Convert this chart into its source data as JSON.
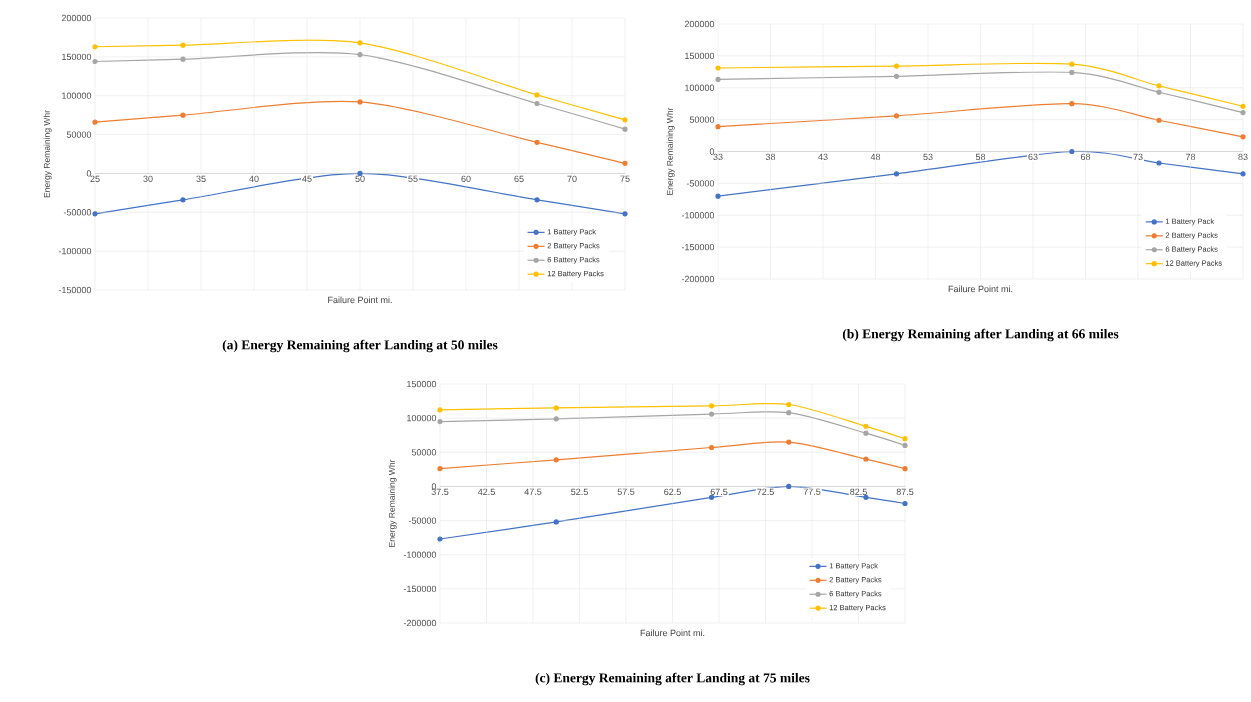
{
  "chart_data": [
    {
      "type": "line",
      "title": "(a) Energy Remaining after Landing at 50 miles",
      "xlabel": "Failure Point mi.",
      "ylabel": "Energy Remaining Whr",
      "xlim": [
        25,
        75
      ],
      "ylim": [
        -150000,
        200000
      ],
      "xticks": [
        25,
        30,
        35,
        40,
        45,
        50,
        55,
        60,
        65,
        70,
        75
      ],
      "yticks": [
        -150000,
        -100000,
        -50000,
        0,
        50000,
        100000,
        150000,
        200000
      ],
      "grid": true,
      "legend": "bottom right",
      "marker": "circle",
      "line_style": "solid",
      "x": [
        25,
        33.3,
        50,
        66.7,
        75
      ],
      "series": [
        {
          "name": "1 Battery Pack",
          "color": "#4472c4",
          "values": [
            -52000,
            -34000,
            0,
            -34000,
            -52000
          ]
        },
        {
          "name": "2 Battery Packs",
          "color": "#ed7d31",
          "values": [
            66000,
            75000,
            92000,
            40000,
            13000
          ]
        },
        {
          "name": "6 Battery Packs",
          "color": "#a5a5a5",
          "values": [
            144000,
            147000,
            153000,
            90000,
            57000
          ]
        },
        {
          "name": "12 Battery Packs",
          "color": "#ffc000",
          "values": [
            163000,
            165000,
            168000,
            101000,
            69000
          ]
        }
      ]
    },
    {
      "type": "line",
      "title": "(b) Energy Remaining after Landing at 66 miles",
      "xlabel": "Failure Point mi.",
      "ylabel": "Energy Remaining Whr",
      "xlim": [
        33,
        83
      ],
      "ylim": [
        -200000,
        200000
      ],
      "xticks": [
        33,
        38,
        43,
        48,
        53,
        58,
        63,
        68,
        73,
        78,
        83
      ],
      "yticks": [
        -200000,
        -150000,
        -100000,
        -50000,
        0,
        50000,
        100000,
        150000,
        200000
      ],
      "grid": true,
      "legend": "bottom right",
      "marker": "circle",
      "line_style": "solid",
      "x": [
        33,
        50,
        66.7,
        75,
        83
      ],
      "series": [
        {
          "name": "1 Battery Pack",
          "color": "#4472c4",
          "values": [
            -70000,
            -35000,
            0,
            -18000,
            -35000
          ]
        },
        {
          "name": "2 Battery Packs",
          "color": "#ed7d31",
          "values": [
            39000,
            56000,
            75000,
            49000,
            23000
          ]
        },
        {
          "name": "6 Battery Packs",
          "color": "#a5a5a5",
          "values": [
            113000,
            118000,
            124000,
            93000,
            61000
          ]
        },
        {
          "name": "12 Battery Packs",
          "color": "#ffc000",
          "values": [
            131000,
            134000,
            137000,
            103000,
            71000
          ]
        }
      ]
    },
    {
      "type": "line",
      "title": "(c) Energy Remaining after Landing at 75 miles",
      "xlabel": "Failure Point mi.",
      "ylabel": "Energy Remaining Whr",
      "xlim": [
        37.5,
        87.5
      ],
      "ylim": [
        -200000,
        150000
      ],
      "xticks": [
        37.5,
        42.5,
        47.5,
        52.5,
        57.5,
        62.5,
        67.5,
        72.5,
        77.5,
        82.5,
        87.5
      ],
      "yticks": [
        -200000,
        -150000,
        -100000,
        -50000,
        0,
        50000,
        100000,
        150000
      ],
      "grid": true,
      "legend": "bottom right",
      "marker": "circle",
      "line_style": "solid",
      "x": [
        37.5,
        50,
        66.7,
        75,
        83.3,
        87.5
      ],
      "series": [
        {
          "name": "1 Battery Pack",
          "color": "#4472c4",
          "values": [
            -77000,
            -52000,
            -16000,
            0,
            -16000,
            -25000
          ]
        },
        {
          "name": "2 Battery Packs",
          "color": "#ed7d31",
          "values": [
            26000,
            39000,
            57000,
            65000,
            40000,
            26000
          ]
        },
        {
          "name": "6 Battery Packs",
          "color": "#a5a5a5",
          "values": [
            95000,
            99000,
            106000,
            108000,
            78000,
            60000
          ]
        },
        {
          "name": "12 Battery Packs",
          "color": "#ffc000",
          "values": [
            112000,
            115000,
            118000,
            120000,
            88000,
            70000
          ]
        }
      ]
    }
  ]
}
